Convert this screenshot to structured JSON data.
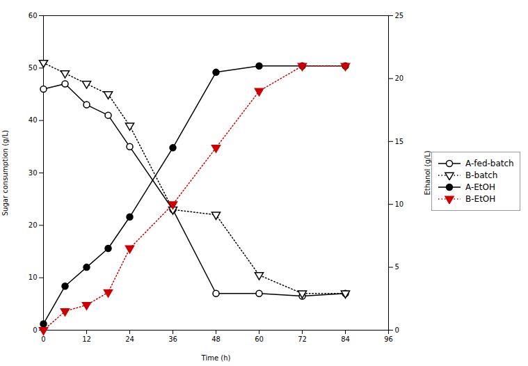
{
  "chart_data": {
    "type": "line",
    "x_label": "Time (h)",
    "y_label": "Sugar consumption (g/L)",
    "y2_label": "Ethanol (g/L)",
    "x": [
      0,
      6,
      12,
      18,
      24,
      36,
      48,
      60,
      72,
      84
    ],
    "xlim": [
      0,
      96
    ],
    "xticks": [
      0,
      12,
      24,
      36,
      48,
      60,
      72,
      84,
      96
    ],
    "ylim": [
      0,
      60
    ],
    "yticks": [
      0,
      10,
      20,
      30,
      40,
      50,
      60
    ],
    "y2lim": [
      0,
      25
    ],
    "y2ticks": [
      0,
      5,
      10,
      15,
      20,
      25
    ],
    "grid": false,
    "legend": "right",
    "series": [
      {
        "name": "A-fed-batch",
        "color": "#000000",
        "marker": "open_circle",
        "line_style": "solid",
        "axis": "y",
        "values": [
          46,
          47,
          43,
          41,
          35,
          23,
          7,
          7,
          6.5,
          7
        ]
      },
      {
        "name": "B-batch",
        "color": "#000000",
        "marker": "open_triangle_down",
        "line_style": "dotted",
        "axis": "y",
        "values": [
          51,
          49,
          47,
          45,
          39,
          23,
          22,
          10.5,
          7,
          7
        ]
      },
      {
        "name": "A-EtOH",
        "color": "#000000",
        "marker": "filled_circle",
        "line_style": "solid",
        "axis": "y2",
        "values": [
          0.5,
          3.5,
          5,
          6.5,
          9,
          14.5,
          20.5,
          21,
          21,
          21
        ]
      },
      {
        "name": "B-EtOH",
        "color": "#cc0000",
        "marker": "filled_triangle_down",
        "line_style": "dotted",
        "axis": "y2",
        "values": [
          0,
          1.5,
          2,
          3,
          6.5,
          10,
          14.5,
          19,
          21,
          21
        ]
      }
    ]
  }
}
